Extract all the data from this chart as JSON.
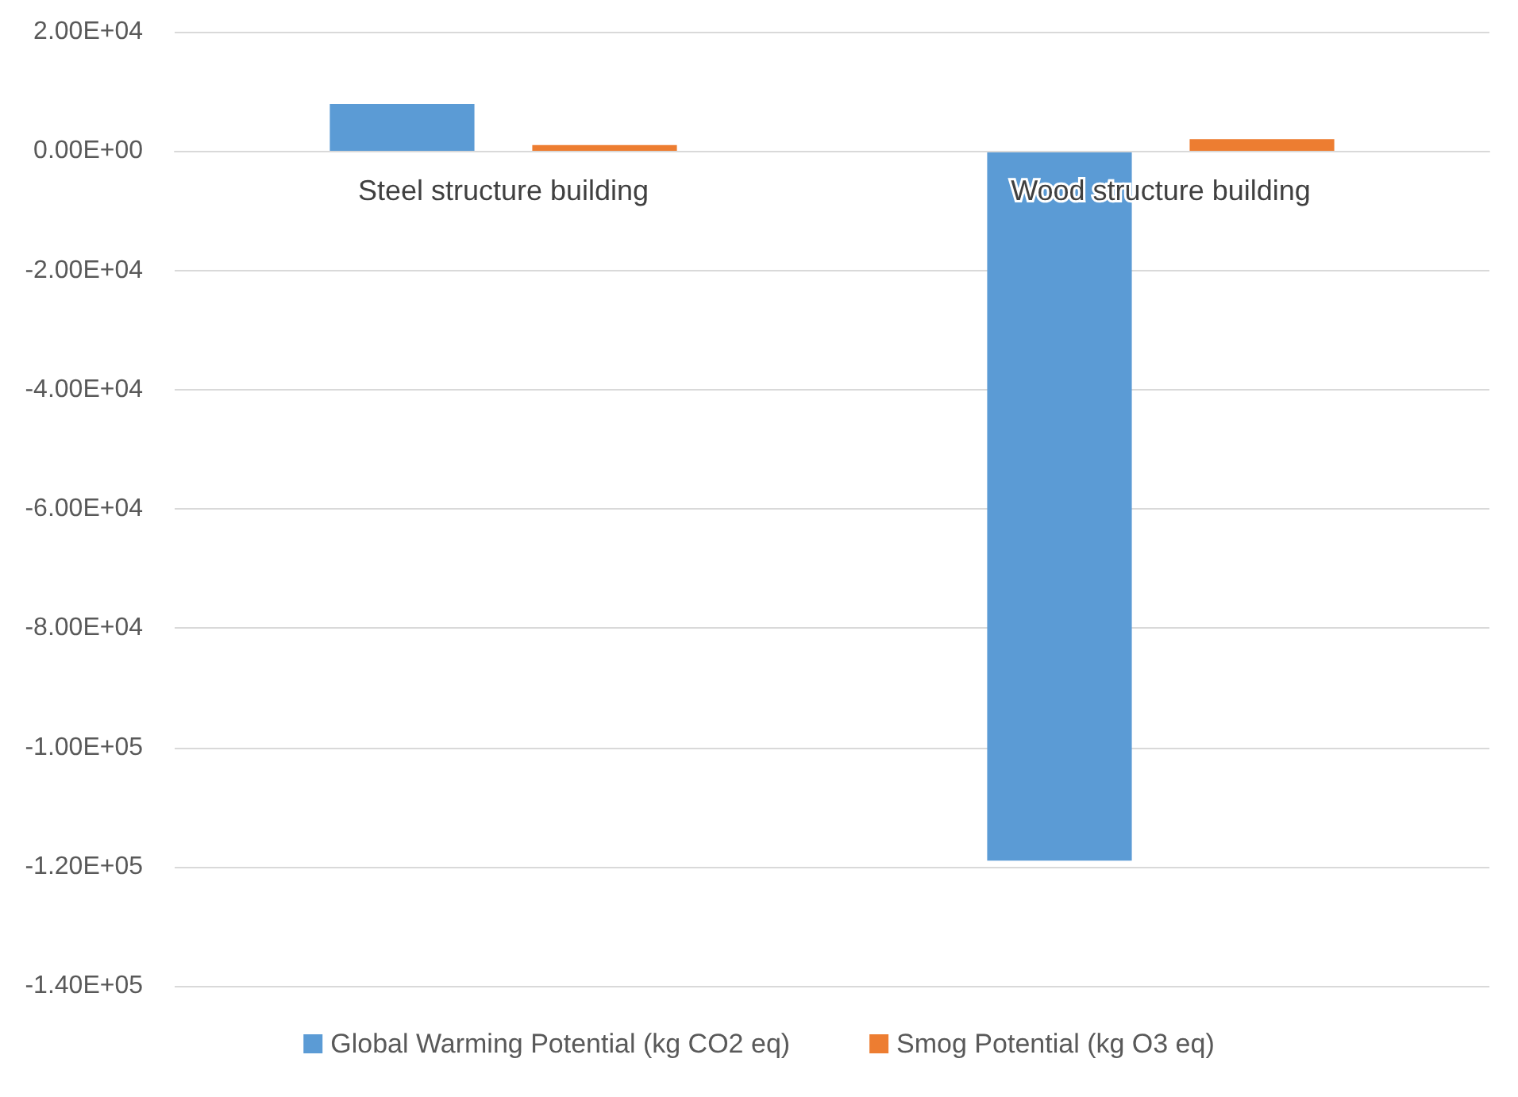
{
  "chart_data": {
    "type": "bar",
    "categories": [
      "Steel structure building",
      "Wood structure building"
    ],
    "series": [
      {
        "name": "Global Warming Potential (kg CO2 eq)",
        "color": "#5b9bd5",
        "values": [
          7900,
          -119000
        ]
      },
      {
        "name": "Smog Potential (kg O3 eq)",
        "color": "#ed7d31",
        "values": [
          1000,
          2000
        ]
      }
    ],
    "ylim": [
      -140000,
      20000
    ],
    "yticks": [
      {
        "value": -140000,
        "label": "-1.40E+05"
      },
      {
        "value": -120000,
        "label": "-1.20E+05"
      },
      {
        "value": -100000,
        "label": "-1.00E+05"
      },
      {
        "value": -80000,
        "label": "-8.00E+04"
      },
      {
        "value": -60000,
        "label": "-6.00E+04"
      },
      {
        "value": -40000,
        "label": "-4.00E+04"
      },
      {
        "value": -20000,
        "label": "-2.00E+04"
      },
      {
        "value": 0,
        "label": "0.00E+00"
      },
      {
        "value": 20000,
        "label": "2.00E+04"
      }
    ],
    "grid": "y",
    "legend": "bottom"
  }
}
